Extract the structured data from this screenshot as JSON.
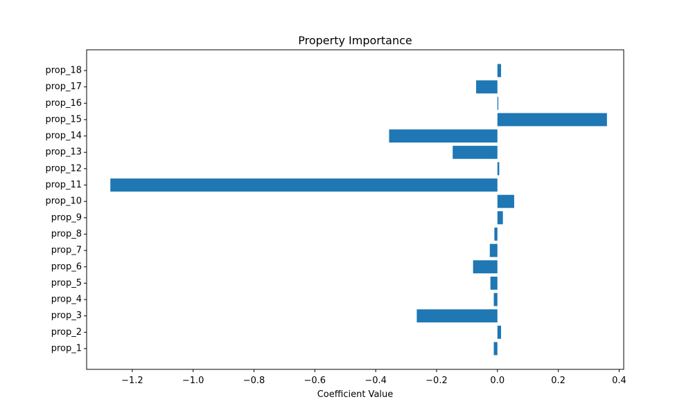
{
  "chart_data": {
    "type": "bar",
    "orientation": "horizontal",
    "title": "Property Importance",
    "xlabel": "Coefficient Value",
    "ylabel": "",
    "xlim": [
      -1.35,
      0.415
    ],
    "xticks": [
      -1.2,
      -1.0,
      -0.8,
      -0.6,
      -0.4,
      -0.2,
      0.0,
      0.2,
      0.4
    ],
    "xtick_labels": [
      "−1.2",
      "−1.0",
      "−0.8",
      "−0.6",
      "−0.4",
      "−0.2",
      "0.0",
      "0.2",
      "0.4"
    ],
    "categories": [
      "prop_1",
      "prop_2",
      "prop_3",
      "prop_4",
      "prop_5",
      "prop_6",
      "prop_7",
      "prop_8",
      "prop_9",
      "prop_10",
      "prop_11",
      "prop_12",
      "prop_13",
      "prop_14",
      "prop_15",
      "prop_16",
      "prop_17",
      "prop_18"
    ],
    "values": [
      -0.012,
      0.012,
      -0.265,
      -0.012,
      -0.023,
      -0.08,
      -0.025,
      -0.01,
      0.018,
      0.055,
      -1.272,
      0.006,
      -0.147,
      -0.356,
      0.36,
      0.003,
      -0.07,
      0.012
    ],
    "bar_color": "#1f77b4",
    "grid": false,
    "legend": false
  }
}
